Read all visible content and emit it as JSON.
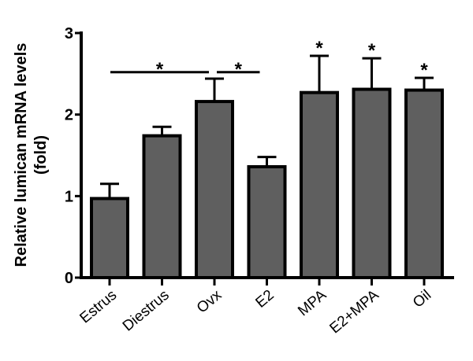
{
  "chart_data": {
    "type": "bar",
    "title": "",
    "xlabel": "",
    "ylabel": [
      "Relative lumican mRNA levels",
      "(fold)"
    ],
    "ylim": [
      0,
      3
    ],
    "yticks": [
      "0",
      "1",
      "2",
      "3"
    ],
    "grid": false,
    "bar_color": "#5f5f5f",
    "categories": [
      "Estrus",
      "Diestrus",
      "Ovx",
      "E2",
      "MPA",
      "E2+MPA",
      "Oil"
    ],
    "values": [
      0.97,
      1.74,
      2.16,
      1.36,
      2.27,
      2.31,
      2.3
    ],
    "errors": [
      0.18,
      0.11,
      0.28,
      0.12,
      0.45,
      0.38,
      0.15
    ],
    "bar_stars": [
      "",
      "",
      "",
      "",
      "*",
      "*",
      "*"
    ],
    "significance_brackets": [
      {
        "from": "Estrus",
        "to": "Ovx",
        "label": "*",
        "y": 2.52
      },
      {
        "from": "Ovx",
        "to": "E2",
        "label": "*",
        "y": 2.52
      }
    ]
  }
}
